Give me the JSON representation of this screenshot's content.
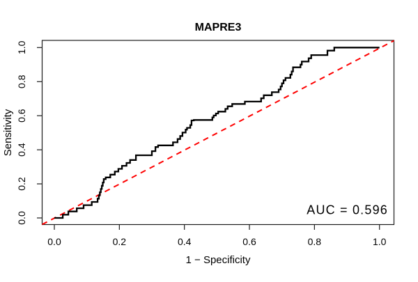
{
  "title": "MAPRE3",
  "axes": {
    "x_label": "1 − Specificity",
    "y_label": "Sensitivity",
    "x_tick_labels": [
      "0.0",
      "0.2",
      "0.4",
      "0.6",
      "0.8",
      "1.0"
    ],
    "y_tick_labels": [
      "0.0",
      "0.2",
      "0.4",
      "0.6",
      "0.8",
      "1.0"
    ]
  },
  "annotation": {
    "auc_label": "AUC = 0.596"
  },
  "colors": {
    "curve": "#000000",
    "diagonal": "#fe0000",
    "box": "#1b1b1b",
    "background": "#ffffff"
  },
  "chart_data": {
    "type": "line",
    "title": "MAPRE3",
    "xlabel": "1 − Specificity",
    "ylabel": "Sensitivity",
    "xlim": [
      0,
      1
    ],
    "ylim": [
      0,
      1
    ],
    "grid": false,
    "legend_position": "none",
    "auc": 0.596,
    "x_ticks": [
      0.0,
      0.2,
      0.4,
      0.6,
      0.8,
      1.0
    ],
    "y_ticks": [
      0.0,
      0.2,
      0.4,
      0.6,
      0.8,
      1.0
    ],
    "series": [
      {
        "name": "ROC curve",
        "style": "solid step curve, black, lwd 2",
        "points": [
          [
            0,
            0
          ],
          [
            0.026,
            0
          ],
          [
            0.026,
            0.019
          ],
          [
            0.043,
            0.019
          ],
          [
            0.043,
            0.038
          ],
          [
            0.069,
            0.038
          ],
          [
            0.069,
            0.057
          ],
          [
            0.09,
            0.057
          ],
          [
            0.09,
            0.075
          ],
          [
            0.115,
            0.075
          ],
          [
            0.115,
            0.094
          ],
          [
            0.133,
            0.094
          ],
          [
            0.133,
            0.113
          ],
          [
            0.137,
            0.113
          ],
          [
            0.137,
            0.132
          ],
          [
            0.14,
            0.132
          ],
          [
            0.14,
            0.151
          ],
          [
            0.143,
            0.151
          ],
          [
            0.143,
            0.17
          ],
          [
            0.146,
            0.17
          ],
          [
            0.146,
            0.189
          ],
          [
            0.149,
            0.189
          ],
          [
            0.149,
            0.208
          ],
          [
            0.152,
            0.208
          ],
          [
            0.152,
            0.228
          ],
          [
            0.158,
            0.228
          ],
          [
            0.158,
            0.238
          ],
          [
            0.172,
            0.238
          ],
          [
            0.172,
            0.254
          ],
          [
            0.186,
            0.254
          ],
          [
            0.186,
            0.272
          ],
          [
            0.197,
            0.272
          ],
          [
            0.197,
            0.288
          ],
          [
            0.208,
            0.288
          ],
          [
            0.208,
            0.306
          ],
          [
            0.222,
            0.306
          ],
          [
            0.222,
            0.323
          ],
          [
            0.233,
            0.323
          ],
          [
            0.233,
            0.34
          ],
          [
            0.251,
            0.34
          ],
          [
            0.251,
            0.368
          ],
          [
            0.3,
            0.368
          ],
          [
            0.3,
            0.392
          ],
          [
            0.311,
            0.392
          ],
          [
            0.311,
            0.416
          ],
          [
            0.319,
            0.416
          ],
          [
            0.319,
            0.426
          ],
          [
            0.365,
            0.426
          ],
          [
            0.365,
            0.444
          ],
          [
            0.379,
            0.444
          ],
          [
            0.379,
            0.463
          ],
          [
            0.387,
            0.463
          ],
          [
            0.387,
            0.481
          ],
          [
            0.394,
            0.481
          ],
          [
            0.394,
            0.501
          ],
          [
            0.404,
            0.501
          ],
          [
            0.404,
            0.518
          ],
          [
            0.408,
            0.518
          ],
          [
            0.408,
            0.529
          ],
          [
            0.418,
            0.529
          ],
          [
            0.418,
            0.545
          ],
          [
            0.422,
            0.545
          ],
          [
            0.422,
            0.572
          ],
          [
            0.429,
            0.572
          ],
          [
            0.429,
            0.575
          ],
          [
            0.486,
            0.575
          ],
          [
            0.486,
            0.59
          ],
          [
            0.49,
            0.59
          ],
          [
            0.49,
            0.601
          ],
          [
            0.497,
            0.601
          ],
          [
            0.497,
            0.613
          ],
          [
            0.504,
            0.613
          ],
          [
            0.504,
            0.624
          ],
          [
            0.526,
            0.624
          ],
          [
            0.526,
            0.64
          ],
          [
            0.533,
            0.64
          ],
          [
            0.533,
            0.655
          ],
          [
            0.547,
            0.655
          ],
          [
            0.547,
            0.669
          ],
          [
            0.586,
            0.669
          ],
          [
            0.586,
            0.683
          ],
          [
            0.636,
            0.683
          ],
          [
            0.636,
            0.702
          ],
          [
            0.644,
            0.702
          ],
          [
            0.644,
            0.72
          ],
          [
            0.669,
            0.72
          ],
          [
            0.669,
            0.738
          ],
          [
            0.69,
            0.738
          ],
          [
            0.69,
            0.754
          ],
          [
            0.696,
            0.754
          ],
          [
            0.696,
            0.772
          ],
          [
            0.7,
            0.772
          ],
          [
            0.7,
            0.79
          ],
          [
            0.705,
            0.79
          ],
          [
            0.705,
            0.808
          ],
          [
            0.711,
            0.808
          ],
          [
            0.711,
            0.822
          ],
          [
            0.726,
            0.822
          ],
          [
            0.726,
            0.841
          ],
          [
            0.73,
            0.841
          ],
          [
            0.73,
            0.86
          ],
          [
            0.734,
            0.86
          ],
          [
            0.734,
            0.884
          ],
          [
            0.757,
            0.884
          ],
          [
            0.757,
            0.9
          ],
          [
            0.761,
            0.9
          ],
          [
            0.761,
            0.918
          ],
          [
            0.782,
            0.918
          ],
          [
            0.782,
            0.937
          ],
          [
            0.79,
            0.937
          ],
          [
            0.79,
            0.956
          ],
          [
            0.84,
            0.956
          ],
          [
            0.84,
            0.982
          ],
          [
            0.861,
            0.982
          ],
          [
            0.861,
            1
          ],
          [
            1,
            1
          ]
        ]
      },
      {
        "name": "chance diagonal",
        "style": "dashed, red, lty 2",
        "points": [
          [
            0,
            0
          ],
          [
            1,
            1
          ]
        ]
      }
    ]
  }
}
